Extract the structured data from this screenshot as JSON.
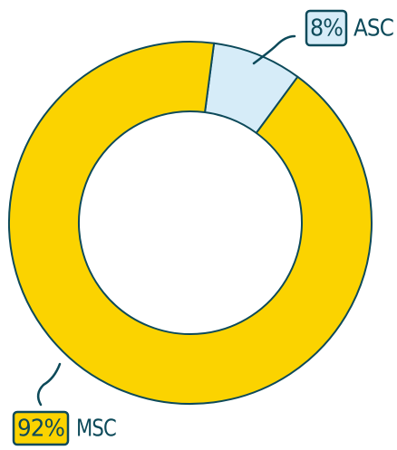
{
  "chart_data": {
    "type": "donut",
    "categories": [
      "ASC",
      "MSC"
    ],
    "values": [
      8,
      92
    ],
    "value_labels": [
      "8%",
      "92%"
    ],
    "colors": [
      "#d6ecf8",
      "#fbd300"
    ]
  }
}
